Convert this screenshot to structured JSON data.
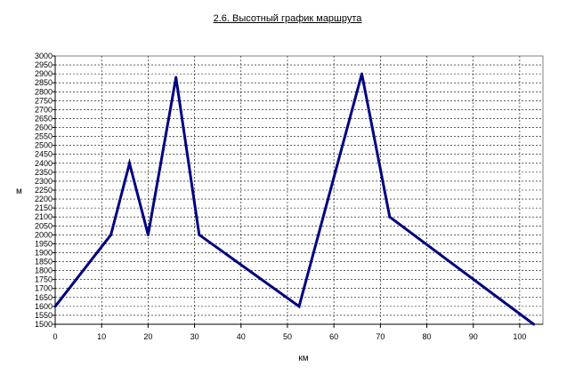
{
  "chart_data": {
    "type": "line",
    "title": "2.6. Высотный график маршрута",
    "xlabel": "км",
    "ylabel": "м",
    "xlim": [
      0,
      105
    ],
    "ylim": [
      1500,
      3000
    ],
    "x_ticks": [
      0,
      10,
      20,
      30,
      40,
      50,
      60,
      70,
      80,
      90,
      100
    ],
    "y_ticks": [
      1500,
      1550,
      1600,
      1650,
      1700,
      1750,
      1800,
      1850,
      1900,
      1950,
      2000,
      2050,
      2100,
      2150,
      2200,
      2250,
      2300,
      2350,
      2400,
      2450,
      2500,
      2550,
      2600,
      2650,
      2700,
      2750,
      2800,
      2850,
      2900,
      2950,
      3000
    ],
    "grid": true,
    "series": [
      {
        "color": "#000080",
        "x": [
          0,
          12,
          16,
          20,
          26,
          31,
          52.5,
          66,
          72,
          103
        ],
        "y": [
          1600,
          2000,
          2400,
          2000,
          2880,
          2000,
          1600,
          2900,
          2100,
          1500
        ]
      }
    ]
  }
}
